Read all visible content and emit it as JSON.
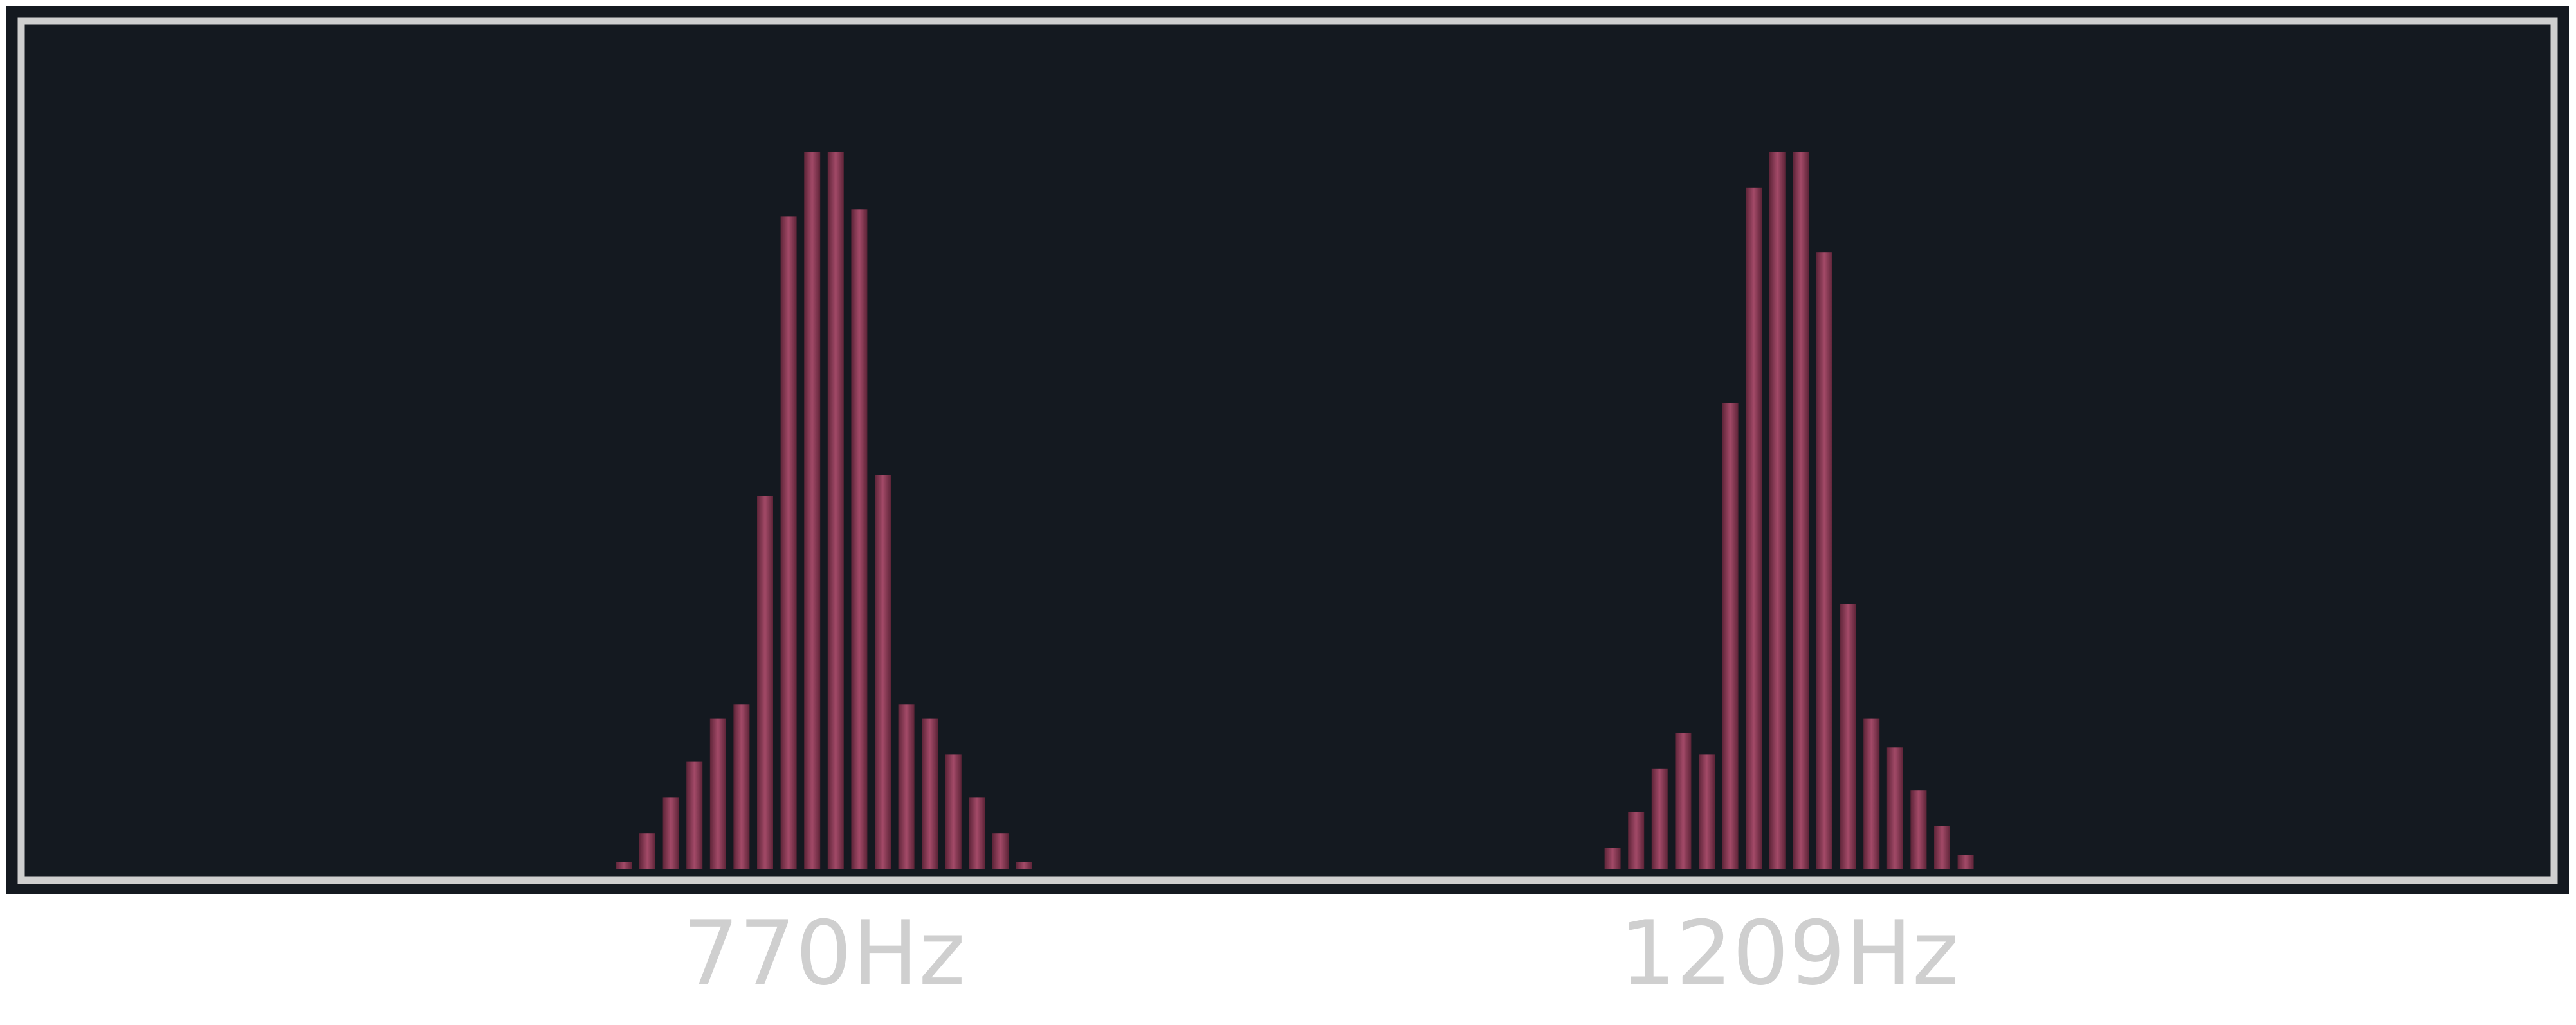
{
  "chart_data": {
    "type": "bar",
    "title": "",
    "xlabel": "",
    "ylabel": "",
    "grid": false,
    "legend": "none",
    "ylim": [
      0,
      1
    ],
    "colors": {
      "background": "#141920",
      "frame_outer": "#141920",
      "frame_border": "#cfcfcf",
      "bar": "#7c3149",
      "bar_highlight": "#a34a68",
      "label": "#cfcfcf"
    },
    "bin_range": [
      0,
      109
    ],
    "peaks": [
      {
        "label": "770Hz",
        "bins": [
          26,
          27,
          28,
          29,
          30,
          31,
          32,
          33,
          34,
          35,
          36,
          37,
          38,
          39,
          40,
          41,
          42,
          43
        ],
        "values": [
          0.01,
          0.05,
          0.1,
          0.15,
          0.21,
          0.23,
          0.52,
          0.91,
          1.0,
          1.0,
          0.92,
          0.55,
          0.23,
          0.21,
          0.16,
          0.1,
          0.05,
          0.01
        ]
      },
      {
        "label": "1209Hz",
        "bins": [
          68,
          69,
          70,
          71,
          72,
          73,
          74,
          75,
          76,
          77,
          78,
          79,
          80,
          81,
          82,
          83,
          84
        ],
        "values": [
          0.03,
          0.08,
          0.14,
          0.19,
          0.16,
          0.65,
          0.95,
          1.0,
          1.0,
          0.86,
          0.37,
          0.21,
          0.17,
          0.11,
          0.06,
          0.02,
          0.0
        ]
      }
    ]
  }
}
